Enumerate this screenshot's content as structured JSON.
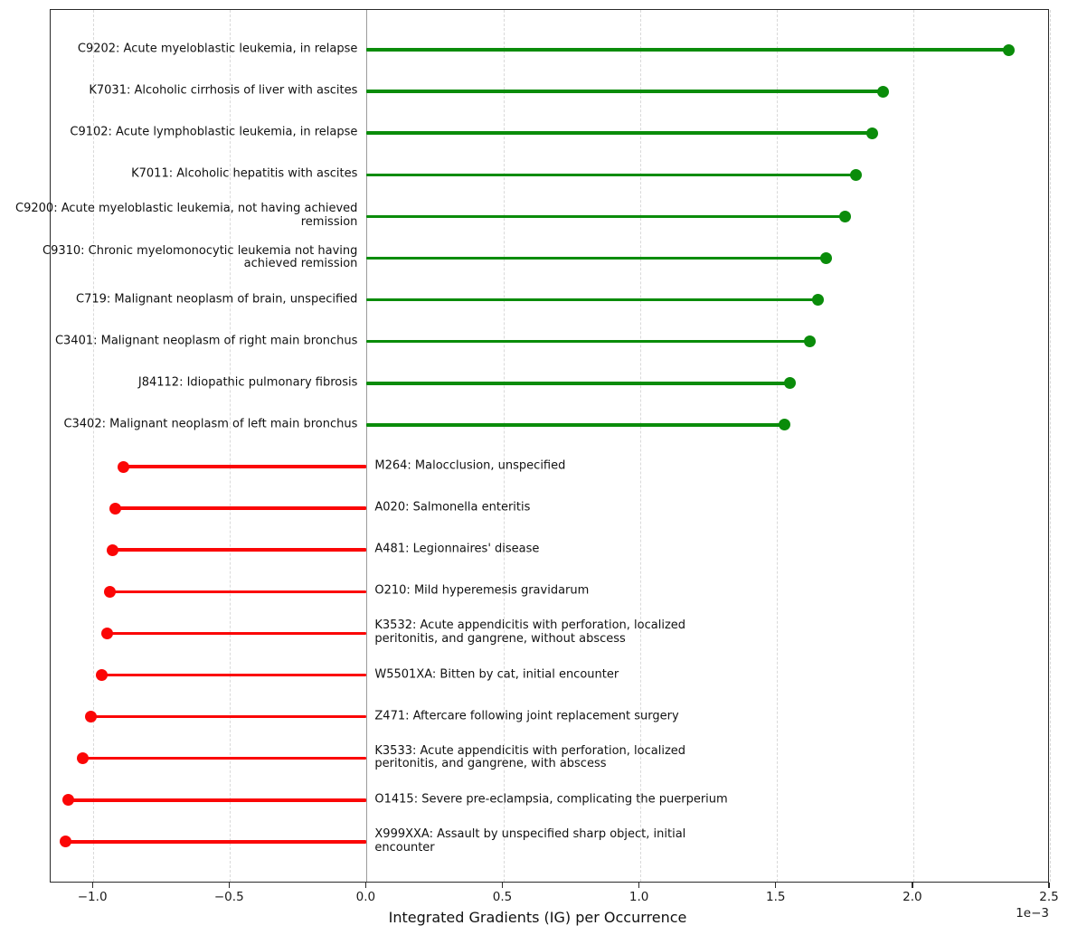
{
  "chart_data": {
    "type": "bar",
    "style": "lollipop",
    "orientation": "horizontal",
    "title": "",
    "xlabel": "Integrated Gradients (IG) per Occurrence",
    "ylabel": "",
    "x_offset_label": "1e−3",
    "x_unit_multiplier": 0.001,
    "xlim": [
      -1.156,
      2.5
    ],
    "grid": "vertical-dashed",
    "zero_line": true,
    "legend": "none",
    "colors": {
      "positive": "#0a8c0a",
      "negative": "#fb0606",
      "zero_line": "#9b9b9b",
      "grid": "#d9d9d9",
      "frame": "#2a2a2a",
      "text": "#111111"
    },
    "x_ticks": [
      {
        "value": -1.0,
        "label": "−1.0"
      },
      {
        "value": -0.5,
        "label": "−0.5"
      },
      {
        "value": 0.0,
        "label": "0.0"
      },
      {
        "value": 0.5,
        "label": "0.5"
      },
      {
        "value": 1.0,
        "label": "1.0"
      },
      {
        "value": 1.5,
        "label": "1.5"
      },
      {
        "value": 2.0,
        "label": "2.0"
      },
      {
        "value": 2.5,
        "label": "2.5"
      }
    ],
    "items": [
      {
        "label": "C9202: Acute myeloblastic leukemia, in relapse",
        "lines": [
          "C9202: Acute myeloblastic leukemia, in relapse"
        ],
        "value_1e3": 2.35
      },
      {
        "label": "K7031: Alcoholic cirrhosis of liver with ascites",
        "lines": [
          "K7031: Alcoholic cirrhosis of liver with ascites"
        ],
        "value_1e3": 1.89
      },
      {
        "label": "C9102: Acute lymphoblastic leukemia, in relapse",
        "lines": [
          "C9102: Acute lymphoblastic leukemia, in relapse"
        ],
        "value_1e3": 1.85
      },
      {
        "label": "K7011: Alcoholic hepatitis with ascites",
        "lines": [
          "K7011: Alcoholic hepatitis with ascites"
        ],
        "value_1e3": 1.79
      },
      {
        "label": "C9200: Acute myeloblastic leukemia, not having achieved remission",
        "lines": [
          "C9200: Acute myeloblastic leukemia, not having achieved",
          "remission"
        ],
        "value_1e3": 1.75
      },
      {
        "label": "C9310: Chronic myelomonocytic leukemia not having achieved remission",
        "lines": [
          "C9310: Chronic myelomonocytic leukemia not having",
          "achieved remission"
        ],
        "value_1e3": 1.68
      },
      {
        "label": "C719: Malignant neoplasm of brain, unspecified",
        "lines": [
          "C719: Malignant neoplasm of brain, unspecified"
        ],
        "value_1e3": 1.65
      },
      {
        "label": "C3401: Malignant neoplasm of right main bronchus",
        "lines": [
          "C3401: Malignant neoplasm of right main bronchus"
        ],
        "value_1e3": 1.62
      },
      {
        "label": "J84112: Idiopathic pulmonary fibrosis",
        "lines": [
          "J84112: Idiopathic pulmonary fibrosis"
        ],
        "value_1e3": 1.55
      },
      {
        "label": "C3402: Malignant neoplasm of left main bronchus",
        "lines": [
          "C3402: Malignant neoplasm of left main bronchus"
        ],
        "value_1e3": 1.53
      },
      {
        "label": "M264: Malocclusion, unspecified",
        "lines": [
          "M264: Malocclusion, unspecified"
        ],
        "value_1e3": -0.89
      },
      {
        "label": "A020: Salmonella enteritis",
        "lines": [
          "A020: Salmonella enteritis"
        ],
        "value_1e3": -0.92
      },
      {
        "label": "A481: Legionnaires' disease",
        "lines": [
          "A481: Legionnaires' disease"
        ],
        "value_1e3": -0.93
      },
      {
        "label": "O210: Mild hyperemesis gravidarum",
        "lines": [
          "O210: Mild hyperemesis gravidarum"
        ],
        "value_1e3": -0.94
      },
      {
        "label": "K3532: Acute appendicitis with perforation, localized peritonitis, and gangrene, without abscess",
        "lines": [
          "K3532: Acute appendicitis with perforation, localized",
          "peritonitis, and gangrene, without abscess"
        ],
        "value_1e3": -0.95
      },
      {
        "label": "W5501XA: Bitten by cat, initial encounter",
        "lines": [
          "W5501XA: Bitten by cat, initial encounter"
        ],
        "value_1e3": -0.97
      },
      {
        "label": "Z471: Aftercare following joint replacement surgery",
        "lines": [
          "Z471: Aftercare following joint replacement surgery"
        ],
        "value_1e3": -1.01
      },
      {
        "label": "K3533: Acute appendicitis with perforation, localized peritonitis, and gangrene, with abscess",
        "lines": [
          "K3533: Acute appendicitis with perforation, localized",
          "peritonitis, and gangrene, with abscess"
        ],
        "value_1e3": -1.04
      },
      {
        "label": "O1415: Severe pre-eclampsia, complicating the puerperium",
        "lines": [
          "O1415: Severe pre-eclampsia, complicating the puerperium"
        ],
        "value_1e3": -1.09
      },
      {
        "label": "X999XXA: Assault by unspecified sharp object, initial encounter",
        "lines": [
          "X999XXA: Assault by unspecified sharp object, initial",
          "encounter"
        ],
        "value_1e3": -1.1
      }
    ]
  }
}
